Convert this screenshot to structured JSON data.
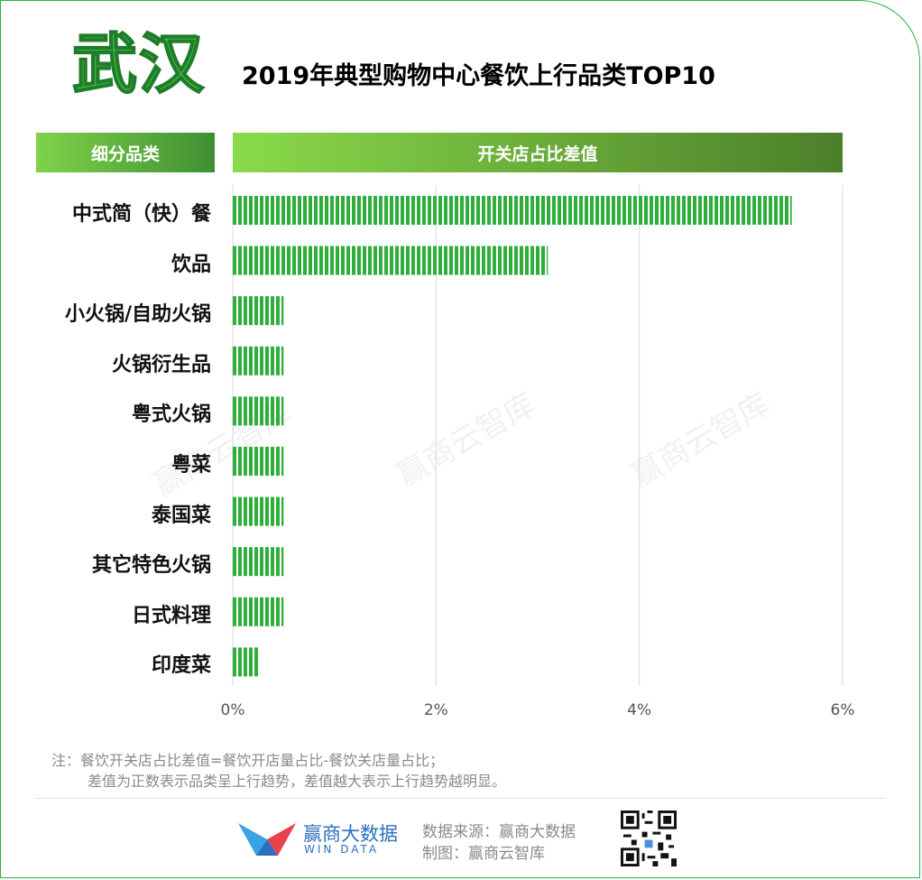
{
  "header": {
    "city": "武汉",
    "title": "2019年典型购物中心餐饮上行品类TOP10",
    "left_column": "细分品类",
    "right_column": "开关店占比差值"
  },
  "chart_data": {
    "type": "bar",
    "orientation": "horizontal",
    "categories": [
      "中式简（快）餐",
      "饮品",
      "小火锅/自助火锅",
      "火锅衍生品",
      "粤式火锅",
      "粤菜",
      "泰国菜",
      "其它特色火锅",
      "日式料理",
      "印度菜"
    ],
    "values": [
      5.5,
      3.1,
      0.5,
      0.5,
      0.5,
      0.5,
      0.5,
      0.5,
      0.5,
      0.25
    ],
    "xlim": [
      0,
      6
    ],
    "ticks": [
      "0%",
      "2%",
      "4%",
      "6%"
    ],
    "tick_values": [
      0,
      2,
      4,
      6
    ],
    "grid": true,
    "bar_color": "#2fae3b"
  },
  "notes": {
    "line1": "注：餐饮开关店占比差值=餐饮开店量占比-餐饮关店量占比；",
    "line2": "差值为正数表示品类呈上行趋势，差值越大表示上行趋势越明显。"
  },
  "footer": {
    "brand_cn": "赢商大数据",
    "brand_en": "WIN DATA",
    "source": "数据来源：赢商大数据",
    "made_by": "制图：赢商云智库"
  },
  "watermark": "赢商云智库"
}
